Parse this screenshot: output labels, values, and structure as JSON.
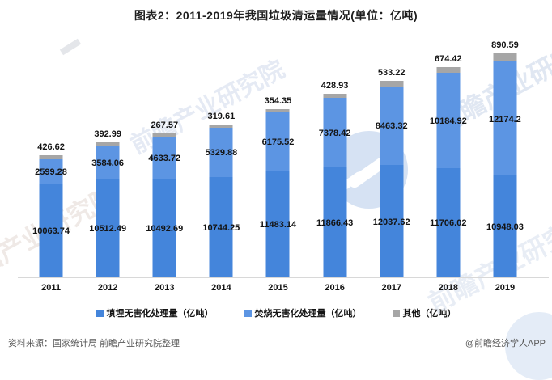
{
  "title": "图表2：2011-2019年我国垃圾清运量情况(单位：亿吨)",
  "chart_data": {
    "type": "bar",
    "stacked": true,
    "title": "图表2：2011-2019年我国垃圾清运量情况(单位：亿吨)",
    "categories": [
      "2011",
      "2012",
      "2013",
      "2014",
      "2015",
      "2016",
      "2017",
      "2018",
      "2019"
    ],
    "series": [
      {
        "name": "填埋无害化处理量（亿吨）",
        "color": "#4485DB",
        "values": [
          10063.74,
          10512.49,
          10492.69,
          10744.25,
          11483.14,
          11866.43,
          12037.62,
          11706.02,
          10948.03
        ]
      },
      {
        "name": "焚烧无害化处理量（亿吨）",
        "color": "#5C95E3",
        "values": [
          2599.28,
          3584.06,
          4633.72,
          5329.88,
          6175.52,
          7378.42,
          8463.32,
          10184.92,
          12174.2
        ]
      },
      {
        "name": "其他（亿吨）",
        "color": "#A6A6A6",
        "values": [
          426.62,
          392.99,
          267.57,
          319.61,
          354.35,
          428.93,
          533.22,
          674.42,
          890.59
        ]
      }
    ],
    "xlabel": "",
    "ylabel": "",
    "ylim": [
      0,
      24100
    ],
    "grid": false,
    "legend_position": "bottom",
    "bar_labels": "all-segments"
  },
  "footer": {
    "source": "资料来源：国家统计局 前瞻产业研究院整理",
    "credit": "@前瞻经济学人APP"
  },
  "watermarks": {
    "text": "前瞻产业研究院"
  }
}
